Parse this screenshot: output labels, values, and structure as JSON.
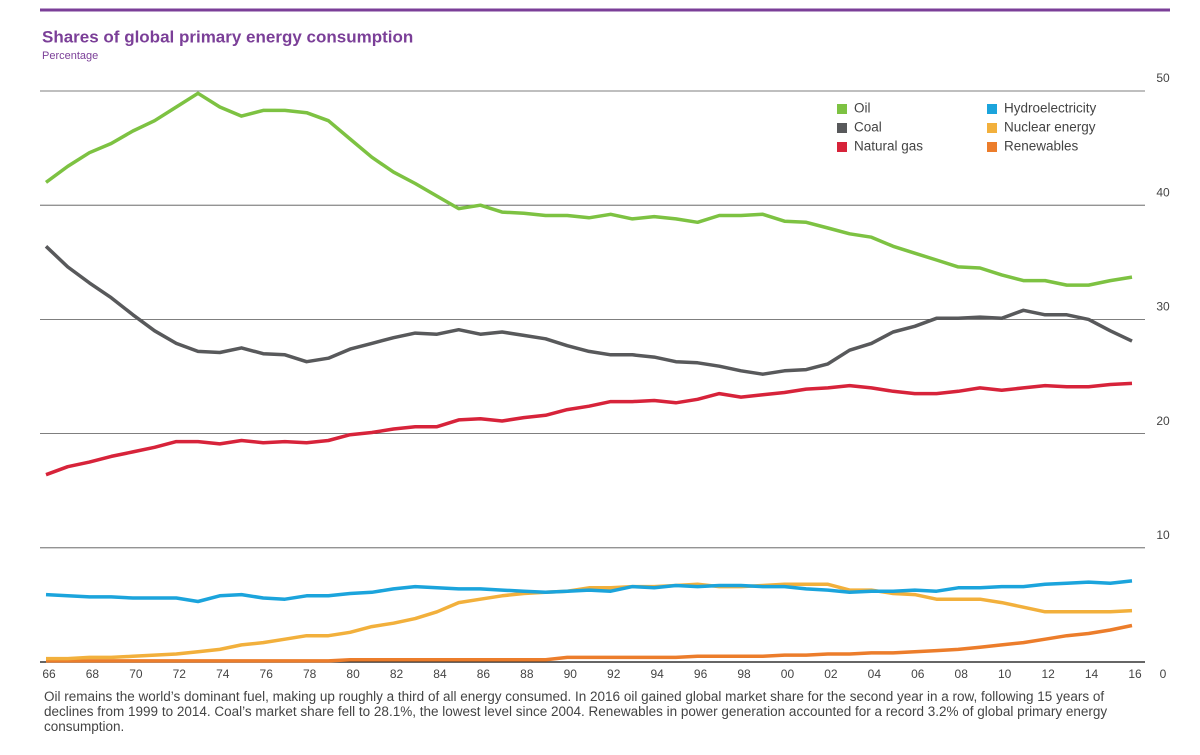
{
  "chart_data": {
    "type": "line",
    "title": "Shares of global primary energy consumption",
    "subtitle": "Percentage",
    "x": [
      1966,
      1967,
      1968,
      1969,
      1970,
      1971,
      1972,
      1973,
      1974,
      1975,
      1976,
      1977,
      1978,
      1979,
      1980,
      1981,
      1982,
      1983,
      1984,
      1985,
      1986,
      1987,
      1988,
      1989,
      1990,
      1991,
      1992,
      1993,
      1994,
      1995,
      1996,
      1997,
      1998,
      1999,
      2000,
      2001,
      2002,
      2003,
      2004,
      2005,
      2006,
      2007,
      2008,
      2009,
      2010,
      2011,
      2012,
      2013,
      2014,
      2015,
      2016
    ],
    "xlim": [
      1966,
      2016
    ],
    "xticks": [
      {
        "value": 1966,
        "label": "66"
      },
      {
        "value": 1968,
        "label": "68"
      },
      {
        "value": 1970,
        "label": "70"
      },
      {
        "value": 1972,
        "label": "72"
      },
      {
        "value": 1974,
        "label": "74"
      },
      {
        "value": 1976,
        "label": "76"
      },
      {
        "value": 1978,
        "label": "78"
      },
      {
        "value": 1980,
        "label": "80"
      },
      {
        "value": 1982,
        "label": "82"
      },
      {
        "value": 1984,
        "label": "84"
      },
      {
        "value": 1986,
        "label": "86"
      },
      {
        "value": 1988,
        "label": "88"
      },
      {
        "value": 1990,
        "label": "90"
      },
      {
        "value": 1992,
        "label": "92"
      },
      {
        "value": 1994,
        "label": "94"
      },
      {
        "value": 1996,
        "label": "96"
      },
      {
        "value": 1998,
        "label": "98"
      },
      {
        "value": 2000,
        "label": "00"
      },
      {
        "value": 2002,
        "label": "02"
      },
      {
        "value": 2004,
        "label": "04"
      },
      {
        "value": 2006,
        "label": "06"
      },
      {
        "value": 2008,
        "label": "08"
      },
      {
        "value": 2010,
        "label": "10"
      },
      {
        "value": 2012,
        "label": "12"
      },
      {
        "value": 2014,
        "label": "14"
      },
      {
        "value": 2016,
        "label": "16"
      }
    ],
    "ylim": [
      0,
      50
    ],
    "yticks": [
      0,
      10,
      20,
      30,
      40,
      50
    ],
    "grid": true,
    "series": [
      {
        "name": "Oil",
        "color": "#7dc242",
        "values": [
          42.0,
          43.4,
          44.6,
          45.4,
          46.5,
          47.4,
          48.6,
          49.8,
          48.6,
          47.8,
          48.3,
          48.3,
          48.1,
          47.4,
          45.8,
          44.2,
          42.9,
          41.9,
          40.8,
          39.7,
          40.0,
          39.4,
          39.3,
          39.1,
          39.1,
          38.9,
          39.2,
          38.8,
          39.0,
          38.8,
          38.5,
          39.1,
          39.1,
          39.2,
          38.6,
          38.5,
          38.0,
          37.5,
          37.2,
          36.4,
          35.8,
          35.2,
          34.6,
          34.5,
          33.9,
          33.4,
          33.4,
          33.0,
          33.0,
          33.4,
          33.7
        ]
      },
      {
        "name": "Coal",
        "color": "#58595b",
        "values": [
          36.4,
          34.6,
          33.2,
          31.9,
          30.4,
          29.0,
          27.9,
          27.2,
          27.1,
          27.5,
          27.0,
          26.9,
          26.3,
          26.6,
          27.4,
          27.9,
          28.4,
          28.8,
          28.7,
          29.1,
          28.7,
          28.9,
          28.6,
          28.3,
          27.7,
          27.2,
          26.9,
          26.9,
          26.7,
          26.3,
          26.2,
          25.9,
          25.5,
          25.2,
          25.5,
          25.6,
          26.1,
          27.3,
          27.9,
          28.9,
          29.4,
          30.1,
          30.1,
          30.2,
          30.1,
          30.8,
          30.4,
          30.4,
          30.0,
          29.0,
          28.1
        ]
      },
      {
        "name": "Natural gas",
        "color": "#d7233a",
        "values": [
          16.4,
          17.1,
          17.5,
          18.0,
          18.4,
          18.8,
          19.3,
          19.3,
          19.1,
          19.4,
          19.2,
          19.3,
          19.2,
          19.4,
          19.9,
          20.1,
          20.4,
          20.6,
          20.6,
          21.2,
          21.3,
          21.1,
          21.4,
          21.6,
          22.1,
          22.4,
          22.8,
          22.8,
          22.9,
          22.7,
          23.0,
          23.5,
          23.2,
          23.4,
          23.6,
          23.9,
          24.0,
          24.2,
          24.0,
          23.7,
          23.5,
          23.5,
          23.7,
          24.0,
          23.8,
          24.0,
          24.2,
          24.1,
          24.1,
          24.3,
          24.4
        ]
      },
      {
        "name": "Hydroelectricity",
        "color": "#1ba4dc",
        "values": [
          5.9,
          5.8,
          5.7,
          5.7,
          5.6,
          5.6,
          5.6,
          5.3,
          5.8,
          5.9,
          5.6,
          5.5,
          5.8,
          5.8,
          6.0,
          6.1,
          6.4,
          6.6,
          6.5,
          6.4,
          6.4,
          6.3,
          6.2,
          6.1,
          6.2,
          6.3,
          6.2,
          6.6,
          6.5,
          6.7,
          6.6,
          6.7,
          6.7,
          6.6,
          6.6,
          6.4,
          6.3,
          6.1,
          6.2,
          6.2,
          6.3,
          6.2,
          6.5,
          6.5,
          6.6,
          6.6,
          6.8,
          6.9,
          7.0,
          6.9,
          7.1
        ]
      },
      {
        "name": "Nuclear energy",
        "color": "#f2b03c",
        "values": [
          0.3,
          0.3,
          0.4,
          0.4,
          0.5,
          0.6,
          0.7,
          0.9,
          1.1,
          1.5,
          1.7,
          2.0,
          2.3,
          2.3,
          2.6,
          3.1,
          3.4,
          3.8,
          4.4,
          5.2,
          5.5,
          5.8,
          6.0,
          6.1,
          6.2,
          6.5,
          6.5,
          6.6,
          6.6,
          6.7,
          6.8,
          6.6,
          6.6,
          6.7,
          6.8,
          6.8,
          6.8,
          6.3,
          6.3,
          6.0,
          5.9,
          5.5,
          5.5,
          5.5,
          5.2,
          4.8,
          4.4,
          4.4,
          4.4,
          4.4,
          4.5
        ]
      },
      {
        "name": "Renewables",
        "color": "#ec7d2b",
        "values": [
          0.1,
          0.1,
          0.1,
          0.1,
          0.1,
          0.1,
          0.1,
          0.1,
          0.1,
          0.1,
          0.1,
          0.1,
          0.1,
          0.1,
          0.2,
          0.2,
          0.2,
          0.2,
          0.2,
          0.2,
          0.2,
          0.2,
          0.2,
          0.2,
          0.4,
          0.4,
          0.4,
          0.4,
          0.4,
          0.4,
          0.5,
          0.5,
          0.5,
          0.5,
          0.6,
          0.6,
          0.7,
          0.7,
          0.8,
          0.8,
          0.9,
          1.0,
          1.1,
          1.3,
          1.5,
          1.7,
          2.0,
          2.3,
          2.5,
          2.8,
          3.2
        ]
      }
    ],
    "caption": "Oil remains the world’s dominant fuel, making up roughly a third of all energy consumed. In 2016 oil gained global market share for the second year in a row, following 15 years of declines from 1999 to 2014. Coal’s market share fell to 28.1%, the lowest level since 2004. Renewables in power generation accounted for a record 3.2% of global primary energy consumption."
  }
}
